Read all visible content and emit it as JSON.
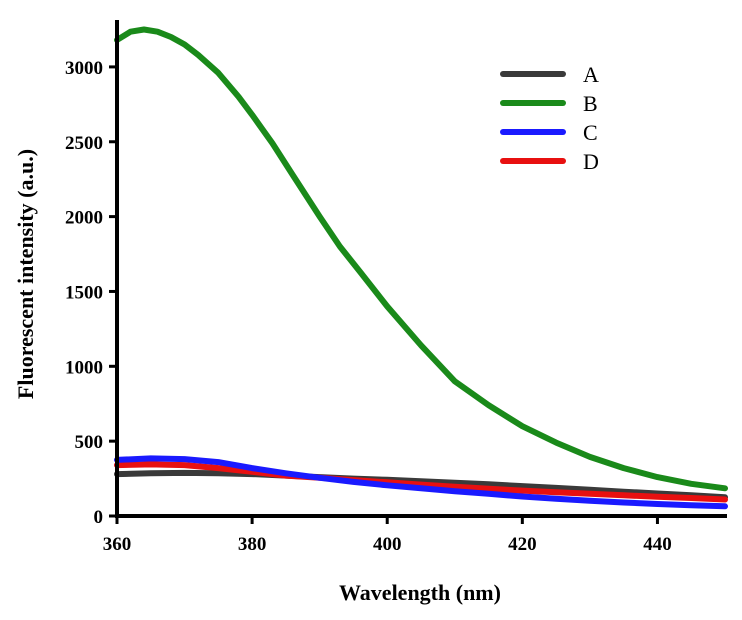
{
  "chart_data": {
    "type": "line",
    "xlabel": "Wavelength (nm)",
    "ylabel": "Fluorescent intensity (a.u.)",
    "xlim": [
      360,
      450
    ],
    "ylim": [
      0,
      3300
    ],
    "x_ticks": [
      360,
      380,
      400,
      420,
      440
    ],
    "y_ticks": [
      0,
      500,
      1000,
      1500,
      2000,
      2500,
      3000
    ],
    "grid": false,
    "legend": "top-right",
    "series": [
      {
        "name": "A",
        "color": "#3a3a3a",
        "x": [
          360,
          365,
          370,
          375,
          380,
          385,
          390,
          395,
          400,
          405,
          410,
          415,
          420,
          425,
          430,
          435,
          440,
          445,
          450
        ],
        "y": [
          280,
          285,
          288,
          285,
          280,
          270,
          260,
          250,
          242,
          232,
          222,
          212,
          200,
          188,
          175,
          162,
          150,
          138,
          125
        ]
      },
      {
        "name": "B",
        "color": "#1a8a1a",
        "x": [
          360,
          362,
          364,
          366,
          368,
          370,
          372,
          375,
          378,
          380,
          383,
          386,
          390,
          393,
          396,
          400,
          405,
          410,
          415,
          420,
          425,
          430,
          435,
          440,
          445,
          450
        ],
        "y": [
          3180,
          3235,
          3250,
          3235,
          3200,
          3150,
          3080,
          2960,
          2800,
          2680,
          2490,
          2280,
          2000,
          1800,
          1630,
          1400,
          1140,
          900,
          740,
          600,
          490,
          395,
          320,
          260,
          215,
          185
        ]
      },
      {
        "name": "C",
        "color": "#1a1aff",
        "x": [
          360,
          365,
          370,
          375,
          380,
          385,
          390,
          395,
          400,
          405,
          410,
          415,
          420,
          425,
          430,
          435,
          440,
          445,
          450
        ],
        "y": [
          375,
          385,
          380,
          360,
          320,
          285,
          255,
          228,
          205,
          185,
          165,
          148,
          130,
          115,
          102,
          90,
          80,
          72,
          65
        ]
      },
      {
        "name": "D",
        "color": "#e81010",
        "x": [
          360,
          365,
          370,
          375,
          380,
          385,
          390,
          395,
          400,
          405,
          410,
          415,
          420,
          425,
          430,
          435,
          440,
          445,
          450
        ],
        "y": [
          340,
          345,
          340,
          320,
          295,
          270,
          255,
          240,
          225,
          210,
          195,
          182,
          170,
          158,
          148,
          138,
          128,
          120,
          110
        ]
      }
    ]
  }
}
